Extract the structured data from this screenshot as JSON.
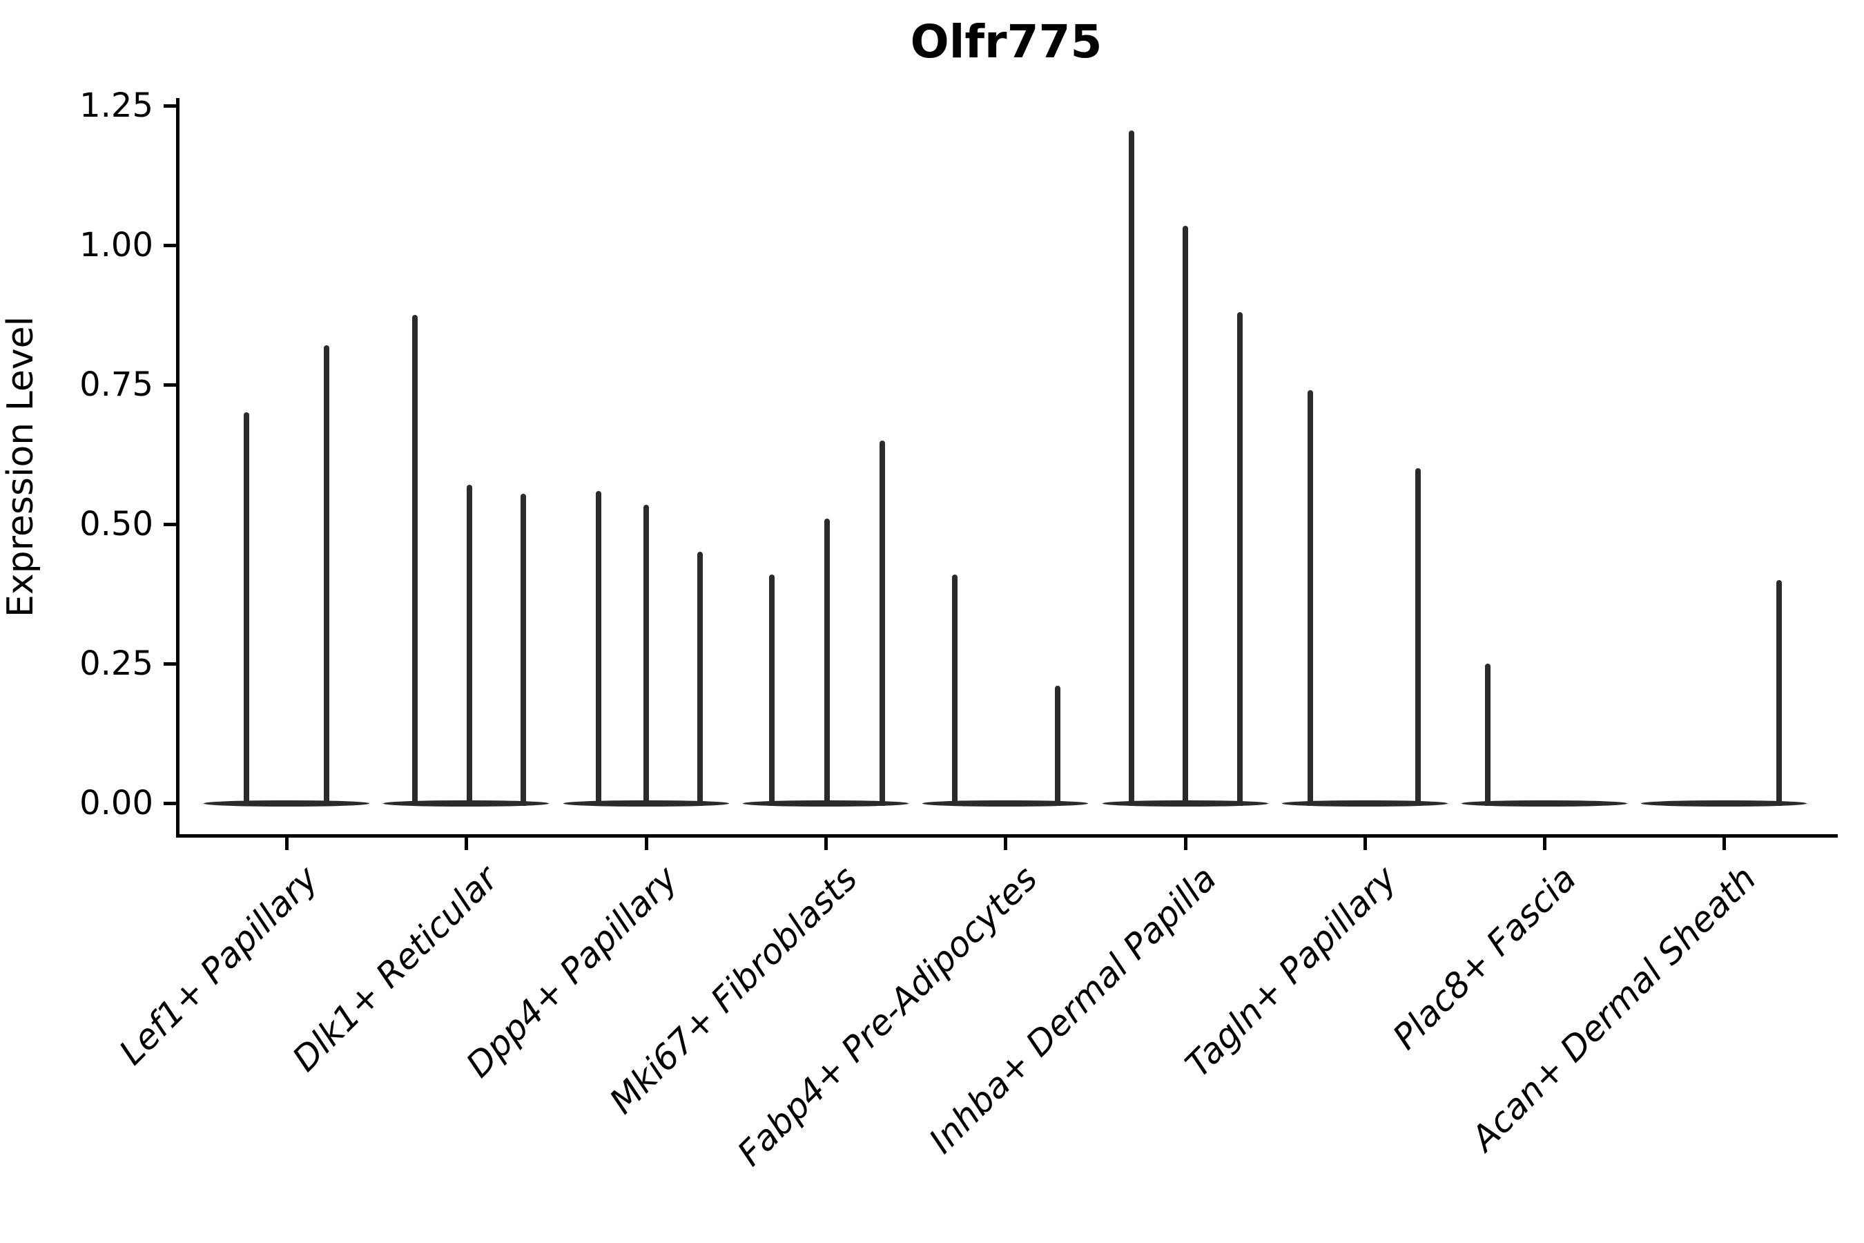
{
  "title": "Olfr775",
  "y_axis": {
    "label": "Expression Level",
    "tick_labels": [
      "0.00",
      "0.25",
      "0.50",
      "0.75",
      "1.00",
      "1.25"
    ]
  },
  "chart_data": {
    "type": "violin",
    "title": "Olfr775",
    "xlabel": "",
    "ylabel": "Expression Level",
    "ylim": [
      0,
      1.26
    ],
    "grid": false,
    "legend": "none",
    "ytick_values": [
      0.0,
      0.25,
      0.5,
      0.75,
      1.0,
      1.25
    ],
    "ytick_labels": [
      "0.00",
      "0.25",
      "0.50",
      "0.75",
      "1.00",
      "1.25"
    ],
    "categories": [
      "Lef1+ Papillary",
      "Dlk1+ Reticular",
      "Dpp4+ Papillary",
      "Mki67+ Fibroblasts",
      "Fabp4+ Pre-Adipocytes",
      "Inhba+ Dermal Papilla",
      "Tagln+ Papillary",
      "Plac8+ Fascia",
      "Acan+ Dermal Sheath"
    ],
    "groups": [
      {
        "category": "Lef1+ Papillary",
        "violins": [
          {
            "offset": -58,
            "peak": 0.7
          },
          {
            "offset": 58,
            "peak": 0.82
          }
        ]
      },
      {
        "category": "Dlk1+ Reticular",
        "violins": [
          {
            "offset": -74,
            "peak": 0.875
          },
          {
            "offset": 5,
            "peak": 0.57
          },
          {
            "offset": 83,
            "peak": 0.555
          }
        ]
      },
      {
        "category": "Dpp4+ Papillary",
        "violins": [
          {
            "offset": -69,
            "peak": 0.56
          },
          {
            "offset": 0,
            "peak": 0.535
          },
          {
            "offset": 78,
            "peak": 0.45
          }
        ]
      },
      {
        "category": "Mki67+ Fibroblasts",
        "violins": [
          {
            "offset": -78,
            "peak": 0.41
          },
          {
            "offset": 2,
            "peak": 0.51
          },
          {
            "offset": 82,
            "peak": 0.65
          }
        ]
      },
      {
        "category": "Fabp4+ Pre-Adipocytes",
        "violins": [
          {
            "offset": -73,
            "peak": 0.41
          },
          {
            "offset": 76,
            "peak": 0.21
          }
        ]
      },
      {
        "category": "Inhba+ Dermal Papilla",
        "violins": [
          {
            "offset": -78,
            "peak": 1.205
          },
          {
            "offset": 0,
            "peak": 1.035
          },
          {
            "offset": 79,
            "peak": 0.88
          }
        ]
      },
      {
        "category": "Tagln+ Papillary",
        "violins": [
          {
            "offset": -79,
            "peak": 0.74
          },
          {
            "offset": 77,
            "peak": 0.6
          }
        ]
      },
      {
        "category": "Plac8+ Fascia",
        "violins": [
          {
            "offset": -82,
            "peak": 0.25
          }
        ]
      },
      {
        "category": "Acan+ Dermal Sheath",
        "violins": [
          {
            "offset": 80,
            "peak": 0.4
          }
        ]
      }
    ]
  }
}
